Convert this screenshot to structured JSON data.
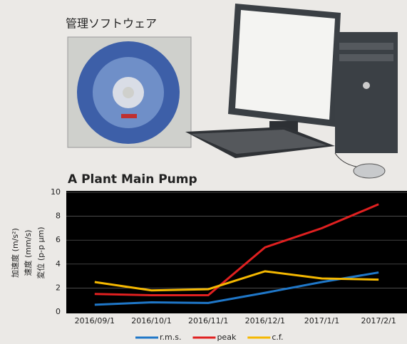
{
  "software_label": "管理ソフトウェア",
  "chart_data": {
    "type": "line",
    "title": "A Plant Main Pump",
    "ylabel": [
      "加速度 (m/s²)",
      "速度 (mm/s)",
      "変位 (p-p μm)"
    ],
    "categories": [
      "2016/09/1",
      "2016/10/1",
      "2016/11/1",
      "2016/12/1",
      "2017/1/1",
      "2017/2/1"
    ],
    "series": [
      {
        "name": "r.m.s.",
        "color": "#1f77c8",
        "values": [
          0.6,
          0.8,
          0.75,
          1.6,
          2.5,
          3.3
        ]
      },
      {
        "name": "peak",
        "color": "#e02020",
        "values": [
          1.5,
          1.4,
          1.4,
          5.4,
          7.0,
          9.0
        ]
      },
      {
        "name": "c.f.",
        "color": "#f5b800",
        "values": [
          2.5,
          1.8,
          1.9,
          3.4,
          2.8,
          2.7
        ]
      }
    ],
    "ylim": [
      0,
      10
    ],
    "yticks": [
      0,
      2,
      4,
      6,
      8,
      10
    ],
    "grid": true,
    "legend": "bottom"
  }
}
